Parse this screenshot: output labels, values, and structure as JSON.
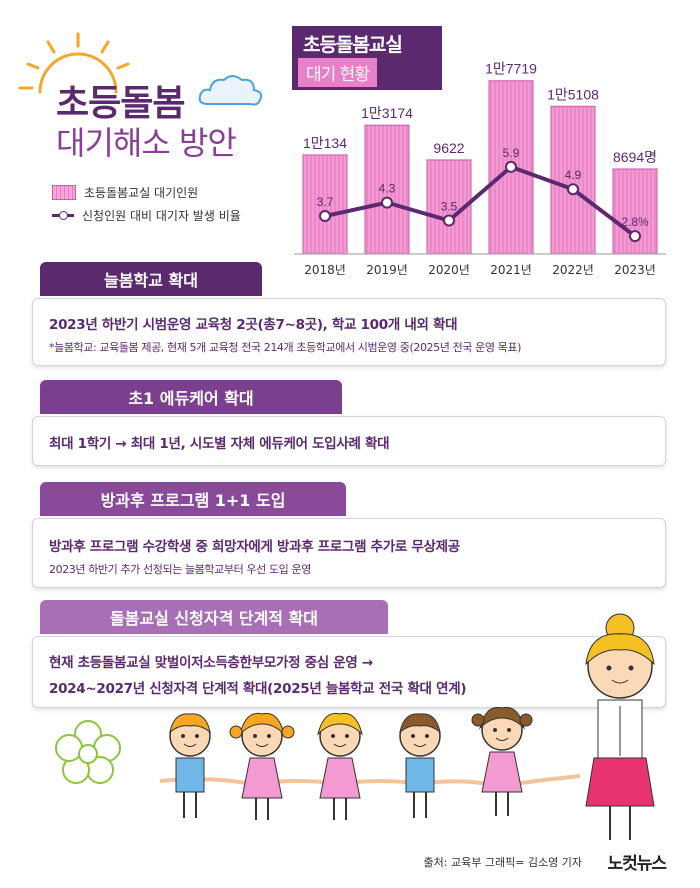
{
  "header": {
    "title_line1": "초등돌봄",
    "title_line2": "대기해소 방안",
    "legend_bar": "초등돌봄교실 대기인원",
    "legend_line": "신청인원 대비 대기자 발생 비율"
  },
  "chart_data": {
    "type": "bar",
    "title_line1": "초등돌봄교실",
    "title_line2": "대기 현황",
    "categories": [
      "2018년",
      "2019년",
      "2020년",
      "2021년",
      "2022년",
      "2023년"
    ],
    "series": [
      {
        "name": "초등돌봄교실 대기인원",
        "values": [
          10134,
          13174,
          9622,
          17719,
          15108,
          8694
        ],
        "labels": [
          "1만134",
          "1만3174",
          "9622",
          "1만7719",
          "1만5108",
          "8694명"
        ]
      },
      {
        "name": "신청인원 대비 대기자 발생 비율",
        "type": "line",
        "values": [
          3.7,
          4.3,
          3.5,
          5.9,
          4.9,
          2.8
        ],
        "labels": [
          "3.7",
          "4.3",
          "3.5",
          "5.9",
          "4.9",
          "2.8%"
        ]
      }
    ],
    "ylim_bar": [
      0,
      18000
    ],
    "ylim_line": [
      2,
      8
    ],
    "colors": {
      "bar": "#f39ad3",
      "bar_edge": "#c85aa6",
      "line": "#5b2a6e"
    }
  },
  "sections": [
    {
      "tab": "늘봄학교 확대",
      "main": "2023년 하반기 시범운영 교육청 2곳(총7~8곳), 학교 100개 내외 확대",
      "sub": "*늘봄학교: 교육돌봄 제공, 현재 5개 교육청 전국 214개 초등학교에서 시범운영 중(2025년 전국 운영 목표)"
    },
    {
      "tab": "초1 에듀케어 확대",
      "main": "최대 1학기 → 최대 1년, 시도별 자체 에듀케어 도입사례 확대"
    },
    {
      "tab": "방과후 프로그램 1+1 도입",
      "main": "방과후 프로그램 수강학생 중 희망자에게 방과후 프로그램 추가로 무상제공",
      "sub": "2023년 하반기 추가 선정되는 늘봄학교부터 우선 도입 운영"
    },
    {
      "tab": "돌봄교실 신청자격 단계적 확대",
      "main": "현재 초등돌봄교실 맞벌이저소득층한부모가정 중심 운영 →",
      "main2": "2024~2027년 신청자격 단계적 확대(2025년 늘봄학교 전국 확대 연계)"
    }
  ],
  "footer": {
    "source": "출처: 교육부  그래픽= 김소영 기자",
    "logo": "노컷뉴스"
  },
  "colors": {
    "primary": "#5b2a6e",
    "accent": "#f39ad3"
  }
}
